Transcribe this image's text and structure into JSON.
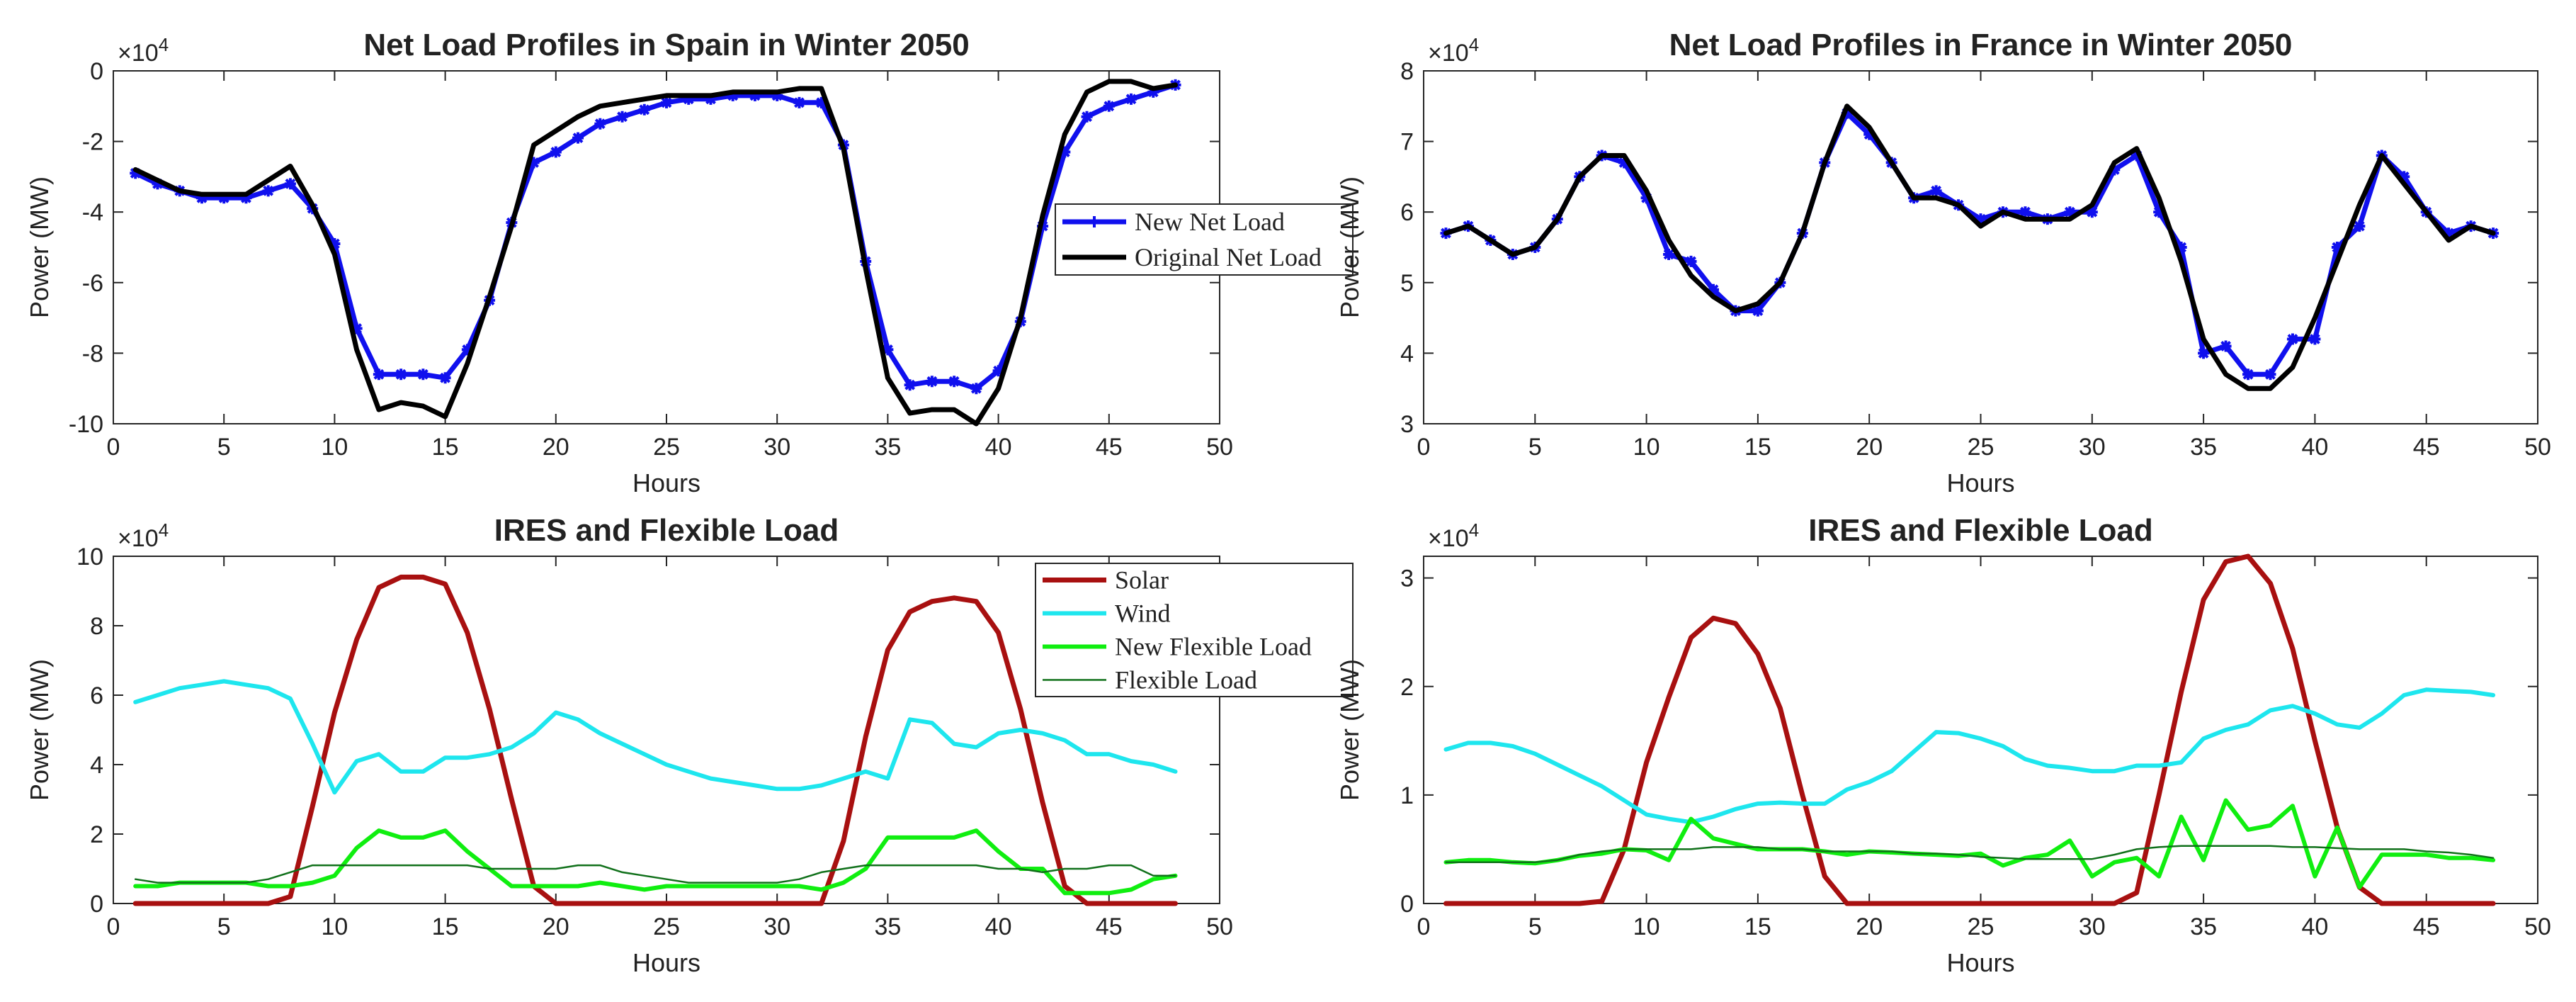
{
  "chart_data": [
    {
      "type": "line",
      "title": "Net Load Profiles in Spain in Winter 2050",
      "xlabel": "Hours",
      "ylabel": "Power (MW)",
      "y_exponent": "×10^4",
      "xlim": [
        0,
        50
      ],
      "ylim": [
        -10,
        0
      ],
      "xticks": [
        "0",
        "5",
        "10",
        "15",
        "20",
        "25",
        "30",
        "35",
        "40",
        "45",
        "50"
      ],
      "yticks": [
        "0",
        "-2",
        "-4",
        "-6",
        "-8",
        "-10"
      ],
      "legend_position": "right",
      "x": [
        1,
        2,
        3,
        4,
        5,
        6,
        7,
        8,
        9,
        10,
        11,
        12,
        13,
        14,
        15,
        16,
        17,
        18,
        19,
        20,
        21,
        22,
        23,
        24,
        25,
        26,
        27,
        28,
        29,
        30,
        31,
        32,
        33,
        34,
        35,
        36,
        37,
        38,
        39,
        40,
        41,
        42,
        43,
        44,
        45,
        46,
        47,
        48
      ],
      "series": [
        {
          "name": "New Net Load",
          "color": "#1010ee",
          "markers": true,
          "values": [
            -2.9,
            -3.2,
            -3.4,
            -3.6,
            -3.6,
            -3.6,
            -3.4,
            -3.2,
            -3.9,
            -4.9,
            -7.3,
            -8.6,
            -8.6,
            -8.6,
            -8.7,
            -7.9,
            -6.5,
            -4.3,
            -2.6,
            -2.3,
            -1.9,
            -1.5,
            -1.3,
            -1.1,
            -0.9,
            -0.8,
            -0.8,
            -0.7,
            -0.7,
            -0.7,
            -0.9,
            -0.9,
            -2.1,
            -5.4,
            -7.9,
            -8.9,
            -8.8,
            -8.8,
            -9.0,
            -8.5,
            -7.1,
            -4.4,
            -2.3,
            -1.3,
            -1.0,
            -0.8,
            -0.6,
            -0.4
          ]
        },
        {
          "name": "Original Net Load",
          "color": "#000000",
          "markers": false,
          "values": [
            -2.8,
            -3.1,
            -3.4,
            -3.5,
            -3.5,
            -3.5,
            -3.1,
            -2.7,
            -3.8,
            -5.2,
            -7.9,
            -9.6,
            -9.4,
            -9.5,
            -9.8,
            -8.3,
            -6.4,
            -4.4,
            -2.1,
            -1.7,
            -1.3,
            -1.0,
            -0.9,
            -0.8,
            -0.7,
            -0.7,
            -0.7,
            -0.6,
            -0.6,
            -0.6,
            -0.5,
            -0.5,
            -2.2,
            -5.6,
            -8.7,
            -9.7,
            -9.6,
            -9.6,
            -10.0,
            -9.0,
            -7.0,
            -4.1,
            -1.8,
            -0.6,
            -0.3,
            -0.3,
            -0.5,
            -0.4
          ]
        }
      ]
    },
    {
      "type": "line",
      "title": "Net Load Profiles in France in Winter 2050",
      "xlabel": "Hours",
      "ylabel": "Power (MW)",
      "y_exponent": "×10^4",
      "xlim": [
        0,
        50
      ],
      "ylim": [
        3,
        8
      ],
      "xticks": [
        "0",
        "5",
        "10",
        "15",
        "20",
        "25",
        "30",
        "35",
        "40",
        "45",
        "50"
      ],
      "yticks": [
        "3",
        "4",
        "5",
        "6",
        "7",
        "8"
      ],
      "legend_position": "none",
      "x": [
        1,
        2,
        3,
        4,
        5,
        6,
        7,
        8,
        9,
        10,
        11,
        12,
        13,
        14,
        15,
        16,
        17,
        18,
        19,
        20,
        21,
        22,
        23,
        24,
        25,
        26,
        27,
        28,
        29,
        30,
        31,
        32,
        33,
        34,
        35,
        36,
        37,
        38,
        39,
        40,
        41,
        42,
        43,
        44,
        45,
        46,
        47,
        48
      ],
      "series": [
        {
          "name": "New Net Load",
          "color": "#1010ee",
          "markers": true,
          "values": [
            5.7,
            5.8,
            5.6,
            5.4,
            5.5,
            5.9,
            6.5,
            6.8,
            6.7,
            6.2,
            5.4,
            5.3,
            4.9,
            4.6,
            4.6,
            5.0,
            5.7,
            6.7,
            7.4,
            7.1,
            6.7,
            6.2,
            6.3,
            6.1,
            5.9,
            6.0,
            6.0,
            5.9,
            6.0,
            6.0,
            6.6,
            6.8,
            6.0,
            5.5,
            4.0,
            4.1,
            3.7,
            3.7,
            4.2,
            4.2,
            5.5,
            5.8,
            6.8,
            6.5,
            6.0,
            5.7,
            5.8,
            5.7
          ]
        },
        {
          "name": "Original Net Load",
          "color": "#000000",
          "markers": false,
          "values": [
            5.7,
            5.8,
            5.6,
            5.4,
            5.5,
            5.9,
            6.5,
            6.8,
            6.8,
            6.3,
            5.6,
            5.1,
            4.8,
            4.6,
            4.7,
            5.0,
            5.7,
            6.7,
            7.5,
            7.2,
            6.7,
            6.2,
            6.2,
            6.1,
            5.8,
            6.0,
            5.9,
            5.9,
            5.9,
            6.1,
            6.7,
            6.9,
            6.2,
            5.3,
            4.2,
            3.7,
            3.5,
            3.5,
            3.8,
            4.5,
            5.3,
            6.1,
            6.8,
            6.4,
            6.0,
            5.6,
            5.8,
            5.7
          ]
        }
      ]
    },
    {
      "type": "line",
      "title": "IRES and Flexible Load",
      "xlabel": "Hours",
      "ylabel": "Power (MW)",
      "y_exponent": "×10^4",
      "xlim": [
        0,
        50
      ],
      "ylim": [
        0,
        10
      ],
      "xticks": [
        "0",
        "5",
        "10",
        "15",
        "20",
        "25",
        "30",
        "35",
        "40",
        "45",
        "50"
      ],
      "yticks": [
        "0",
        "2",
        "4",
        "6",
        "8",
        "10"
      ],
      "legend_position": "top-right",
      "x": [
        1,
        2,
        3,
        4,
        5,
        6,
        7,
        8,
        9,
        10,
        11,
        12,
        13,
        14,
        15,
        16,
        17,
        18,
        19,
        20,
        21,
        22,
        23,
        24,
        25,
        26,
        27,
        28,
        29,
        30,
        31,
        32,
        33,
        34,
        35,
        36,
        37,
        38,
        39,
        40,
        41,
        42,
        43,
        44,
        45,
        46,
        47,
        48
      ],
      "series": [
        {
          "name": "Solar",
          "color": "#a81010",
          "width": 7,
          "values": [
            0,
            0,
            0,
            0,
            0,
            0,
            0,
            0.2,
            2.8,
            5.5,
            7.6,
            9.1,
            9.4,
            9.4,
            9.2,
            7.8,
            5.6,
            3.0,
            0.5,
            0,
            0,
            0,
            0,
            0,
            0,
            0,
            0,
            0,
            0,
            0,
            0,
            0,
            1.8,
            4.8,
            7.3,
            8.4,
            8.7,
            8.8,
            8.7,
            7.8,
            5.6,
            2.9,
            0.5,
            0,
            0,
            0,
            0,
            0
          ]
        },
        {
          "name": "Wind",
          "color": "#1ee6ee",
          "width": 6,
          "values": [
            5.8,
            6.0,
            6.2,
            6.3,
            6.4,
            6.3,
            6.2,
            5.9,
            4.6,
            3.2,
            4.1,
            4.3,
            3.8,
            3.8,
            4.2,
            4.2,
            4.3,
            4.5,
            4.9,
            5.5,
            5.3,
            4.9,
            4.6,
            4.3,
            4.0,
            3.8,
            3.6,
            3.5,
            3.4,
            3.3,
            3.3,
            3.4,
            3.6,
            3.8,
            3.6,
            5.3,
            5.2,
            4.6,
            4.5,
            4.9,
            5.0,
            4.9,
            4.7,
            4.3,
            4.3,
            4.1,
            4.0,
            3.8
          ]
        },
        {
          "name": "New Flexible Load",
          "color": "#10ee10",
          "width": 6,
          "values": [
            0.5,
            0.5,
            0.6,
            0.6,
            0.6,
            0.6,
            0.5,
            0.5,
            0.6,
            0.8,
            1.6,
            2.1,
            1.9,
            1.9,
            2.1,
            1.5,
            1.0,
            0.5,
            0.5,
            0.5,
            0.5,
            0.6,
            0.5,
            0.4,
            0.5,
            0.5,
            0.5,
            0.5,
            0.5,
            0.5,
            0.5,
            0.4,
            0.6,
            1.0,
            1.9,
            1.9,
            1.9,
            1.9,
            2.1,
            1.5,
            1.0,
            1.0,
            0.3,
            0.3,
            0.3,
            0.4,
            0.7,
            0.8
          ]
        },
        {
          "name": "Flexible Load",
          "color": "#10701a",
          "width": 2.5,
          "values": [
            0.7,
            0.6,
            0.6,
            0.6,
            0.6,
            0.6,
            0.7,
            0.9,
            1.1,
            1.1,
            1.1,
            1.1,
            1.1,
            1.1,
            1.1,
            1.1,
            1.0,
            1.0,
            1.0,
            1.0,
            1.1,
            1.1,
            0.9,
            0.8,
            0.7,
            0.6,
            0.6,
            0.6,
            0.6,
            0.6,
            0.7,
            0.9,
            1.0,
            1.1,
            1.1,
            1.1,
            1.1,
            1.1,
            1.1,
            1.0,
            1.0,
            0.9,
            1.0,
            1.0,
            1.1,
            1.1,
            0.8,
            0.8
          ]
        }
      ]
    },
    {
      "type": "line",
      "title": "IRES and Flexible Load",
      "xlabel": "Hours",
      "ylabel": "Power (MW)",
      "y_exponent": "×10^4",
      "xlim": [
        0,
        50
      ],
      "ylim": [
        0,
        3.2
      ],
      "xticks": [
        "0",
        "5",
        "10",
        "15",
        "20",
        "25",
        "30",
        "35",
        "40",
        "45",
        "50"
      ],
      "yticks": [
        "0",
        "1",
        "2",
        "3"
      ],
      "legend_position": "none",
      "x": [
        1,
        2,
        3,
        4,
        5,
        6,
        7,
        8,
        9,
        10,
        11,
        12,
        13,
        14,
        15,
        16,
        17,
        18,
        19,
        20,
        21,
        22,
        23,
        24,
        25,
        26,
        27,
        28,
        29,
        30,
        31,
        32,
        33,
        34,
        35,
        36,
        37,
        38,
        39,
        40,
        41,
        42,
        43,
        44,
        45,
        46,
        47,
        48
      ],
      "series": [
        {
          "name": "Solar",
          "color": "#a81010",
          "width": 7,
          "values": [
            0,
            0,
            0,
            0,
            0,
            0,
            0,
            0.02,
            0.5,
            1.3,
            1.9,
            2.45,
            2.63,
            2.58,
            2.3,
            1.8,
            1.0,
            0.25,
            0,
            0,
            0,
            0,
            0,
            0,
            0,
            0,
            0,
            0,
            0,
            0,
            0,
            0.1,
            1.0,
            1.95,
            2.8,
            3.15,
            3.2,
            2.95,
            2.35,
            1.5,
            0.7,
            0.15,
            0,
            0,
            0,
            0,
            0,
            0
          ]
        },
        {
          "name": "Wind",
          "color": "#1ee6ee",
          "width": 6,
          "values": [
            1.42,
            1.48,
            1.48,
            1.45,
            1.38,
            1.28,
            1.18,
            1.08,
            0.95,
            0.82,
            0.78,
            0.75,
            0.8,
            0.87,
            0.92,
            0.93,
            0.92,
            0.92,
            1.05,
            1.12,
            1.22,
            1.4,
            1.58,
            1.57,
            1.52,
            1.45,
            1.33,
            1.27,
            1.25,
            1.22,
            1.22,
            1.27,
            1.27,
            1.3,
            1.52,
            1.6,
            1.65,
            1.78,
            1.82,
            1.75,
            1.65,
            1.62,
            1.75,
            1.92,
            1.97,
            1.96,
            1.95,
            1.92
          ]
        },
        {
          "name": "New Flexible Load",
          "color": "#10ee10",
          "width": 6,
          "values": [
            0.38,
            0.4,
            0.4,
            0.38,
            0.37,
            0.4,
            0.44,
            0.46,
            0.5,
            0.49,
            0.4,
            0.78,
            0.6,
            0.55,
            0.5,
            0.5,
            0.5,
            0.48,
            0.45,
            0.48,
            0.47,
            0.46,
            0.45,
            0.44,
            0.46,
            0.35,
            0.42,
            0.45,
            0.58,
            0.25,
            0.38,
            0.42,
            0.25,
            0.8,
            0.4,
            0.95,
            0.68,
            0.72,
            0.9,
            0.25,
            0.7,
            0.15,
            0.45,
            0.45,
            0.45,
            0.42,
            0.42,
            0.4
          ]
        },
        {
          "name": "Flexible Load",
          "color": "#10701a",
          "width": 2.5,
          "values": [
            0.38,
            0.38,
            0.38,
            0.38,
            0.38,
            0.4,
            0.45,
            0.48,
            0.5,
            0.5,
            0.5,
            0.5,
            0.52,
            0.52,
            0.52,
            0.5,
            0.5,
            0.48,
            0.48,
            0.48,
            0.48,
            0.46,
            0.46,
            0.45,
            0.43,
            0.42,
            0.41,
            0.41,
            0.41,
            0.41,
            0.45,
            0.5,
            0.52,
            0.53,
            0.53,
            0.53,
            0.53,
            0.53,
            0.52,
            0.52,
            0.51,
            0.5,
            0.5,
            0.5,
            0.48,
            0.47,
            0.45,
            0.42
          ]
        }
      ]
    }
  ]
}
